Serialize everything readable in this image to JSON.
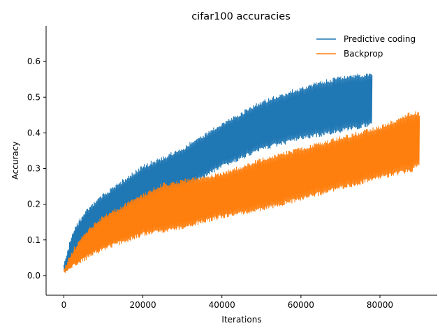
{
  "chart_data": {
    "type": "line",
    "title": "cifar100 accuracies",
    "xlabel": "Iterations",
    "ylabel": "Accuracy",
    "xlim": [
      -4500,
      94500
    ],
    "ylim": [
      -0.055,
      0.7
    ],
    "x_ticks": [
      0,
      20000,
      40000,
      60000,
      80000
    ],
    "x_tick_labels": [
      "0",
      "20000",
      "40000",
      "60000",
      "80000"
    ],
    "y_ticks": [
      0.0,
      0.1,
      0.2,
      0.3,
      0.4,
      0.5,
      0.6
    ],
    "y_tick_labels": [
      "0.0",
      "0.1",
      "0.2",
      "0.3",
      "0.4",
      "0.5",
      "0.6"
    ],
    "grid": false,
    "legend_position": "top-right",
    "series": [
      {
        "name": "Predictive coding",
        "color": "#1f77b4",
        "x_end": 78000,
        "upper_envelope": {
          "x": [
            0,
            2000,
            4000,
            6000,
            10000,
            15000,
            20000,
            30000,
            40000,
            50000,
            60000,
            70000,
            78000
          ],
          "acc": [
            0.03,
            0.12,
            0.16,
            0.19,
            0.23,
            0.27,
            0.31,
            0.36,
            0.43,
            0.49,
            0.53,
            0.56,
            0.57
          ]
        },
        "lower_envelope": {
          "x": [
            0,
            2000,
            4000,
            6000,
            10000,
            15000,
            20000,
            30000,
            40000,
            50000,
            60000,
            70000,
            78000
          ],
          "acc": [
            0.0,
            0.03,
            0.06,
            0.08,
            0.11,
            0.14,
            0.18,
            0.24,
            0.3,
            0.35,
            0.38,
            0.4,
            0.42
          ]
        }
      },
      {
        "name": "Backprop",
        "color": "#ff7f0e",
        "x_end": 90000,
        "upper_envelope": {
          "x": [
            0,
            2000,
            5000,
            10000,
            15000,
            20000,
            25000,
            30000,
            40000,
            50000,
            60000,
            70000,
            80000,
            88000,
            90000
          ],
          "acc": [
            0.02,
            0.07,
            0.12,
            0.17,
            0.2,
            0.23,
            0.26,
            0.27,
            0.29,
            0.33,
            0.36,
            0.39,
            0.42,
            0.46,
            0.46
          ]
        },
        "lower_envelope": {
          "x": [
            0,
            2000,
            5000,
            10000,
            15000,
            20000,
            25000,
            30000,
            40000,
            50000,
            60000,
            70000,
            80000,
            88000,
            90000
          ],
          "acc": [
            0.0,
            0.02,
            0.04,
            0.07,
            0.09,
            0.11,
            0.12,
            0.13,
            0.16,
            0.18,
            0.21,
            0.24,
            0.27,
            0.29,
            0.31
          ]
        }
      }
    ]
  }
}
